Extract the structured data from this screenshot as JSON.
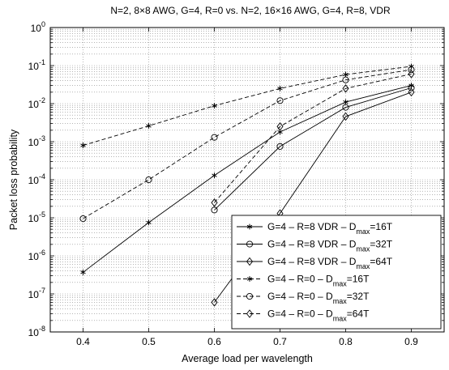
{
  "chart_data": {
    "type": "line",
    "title": "N=2, 8×8 AWG, G=4, R=0 vs. N=2, 16×16 AWG, G=4, R=8, VDR",
    "xlabel": "Average load per wavelength",
    "ylabel": "Packet loss probability",
    "xlim": [
      0.35,
      0.95
    ],
    "ylim": [
      1e-08,
      1
    ],
    "yscale": "log",
    "grid": true,
    "legend_position": "lower-right",
    "x_ticks": [
      "0.4",
      "0.5",
      "0.6",
      "0.7",
      "0.8",
      "0.9"
    ],
    "y_tick_exponents": [
      "0",
      "-1",
      "-2",
      "-3",
      "-4",
      "-5",
      "-6",
      "-7",
      "-8"
    ],
    "series": [
      {
        "name_main": "G=4 – R=8 VDR – D",
        "name_sub": "max",
        "name_tail": "=16T",
        "line": "solid",
        "marker": "star",
        "x": [
          0.4,
          0.5,
          0.6,
          0.7,
          0.8,
          0.9
        ],
        "y": [
          3.7e-07,
          7.5e-06,
          0.00013,
          0.0018,
          0.011,
          0.03
        ]
      },
      {
        "name_main": "G=4 – R=8 VDR – D",
        "name_sub": "max",
        "name_tail": "=32T",
        "line": "solid",
        "marker": "circle",
        "x": [
          0.6,
          0.7,
          0.8,
          0.9
        ],
        "y": [
          1.6e-05,
          0.00075,
          0.008,
          0.026
        ]
      },
      {
        "name_main": "G=4 – R=8 VDR – D",
        "name_sub": "max",
        "name_tail": "=64T",
        "line": "solid",
        "marker": "diamond",
        "x": [
          0.6,
          0.7,
          0.8,
          0.9
        ],
        "y": [
          6e-08,
          1.3e-05,
          0.0046,
          0.02
        ]
      },
      {
        "name_main": "G=4 – R=0 – D",
        "name_sub": "max",
        "name_tail": "=16T",
        "line": "dashed",
        "marker": "star",
        "x": [
          0.4,
          0.5,
          0.6,
          0.7,
          0.8,
          0.9
        ],
        "y": [
          0.0008,
          0.0026,
          0.0088,
          0.025,
          0.058,
          0.095
        ]
      },
      {
        "name_main": "G=4 – R=0 – D",
        "name_sub": "max",
        "name_tail": "=32T",
        "line": "dashed",
        "marker": "circle",
        "x": [
          0.4,
          0.5,
          0.6,
          0.7,
          0.8,
          0.9
        ],
        "y": [
          9.5e-06,
          0.0001,
          0.0013,
          0.012,
          0.042,
          0.078
        ]
      },
      {
        "name_main": "G=4 – R=0 – D",
        "name_sub": "max",
        "name_tail": "=64T",
        "line": "dashed",
        "marker": "diamond",
        "x": [
          0.6,
          0.7,
          0.8,
          0.9
        ],
        "y": [
          2.5e-05,
          0.0025,
          0.025,
          0.06
        ]
      }
    ]
  }
}
